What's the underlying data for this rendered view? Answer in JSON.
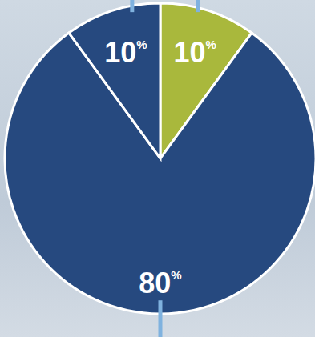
{
  "chart_data": {
    "type": "pie",
    "values": [
      10,
      80,
      10
    ],
    "value_labels": [
      "10%",
      "80%",
      "10%"
    ],
    "colors": [
      "#a9b83c",
      "#26497f",
      "#26497f"
    ],
    "data_labels": true
  }
}
